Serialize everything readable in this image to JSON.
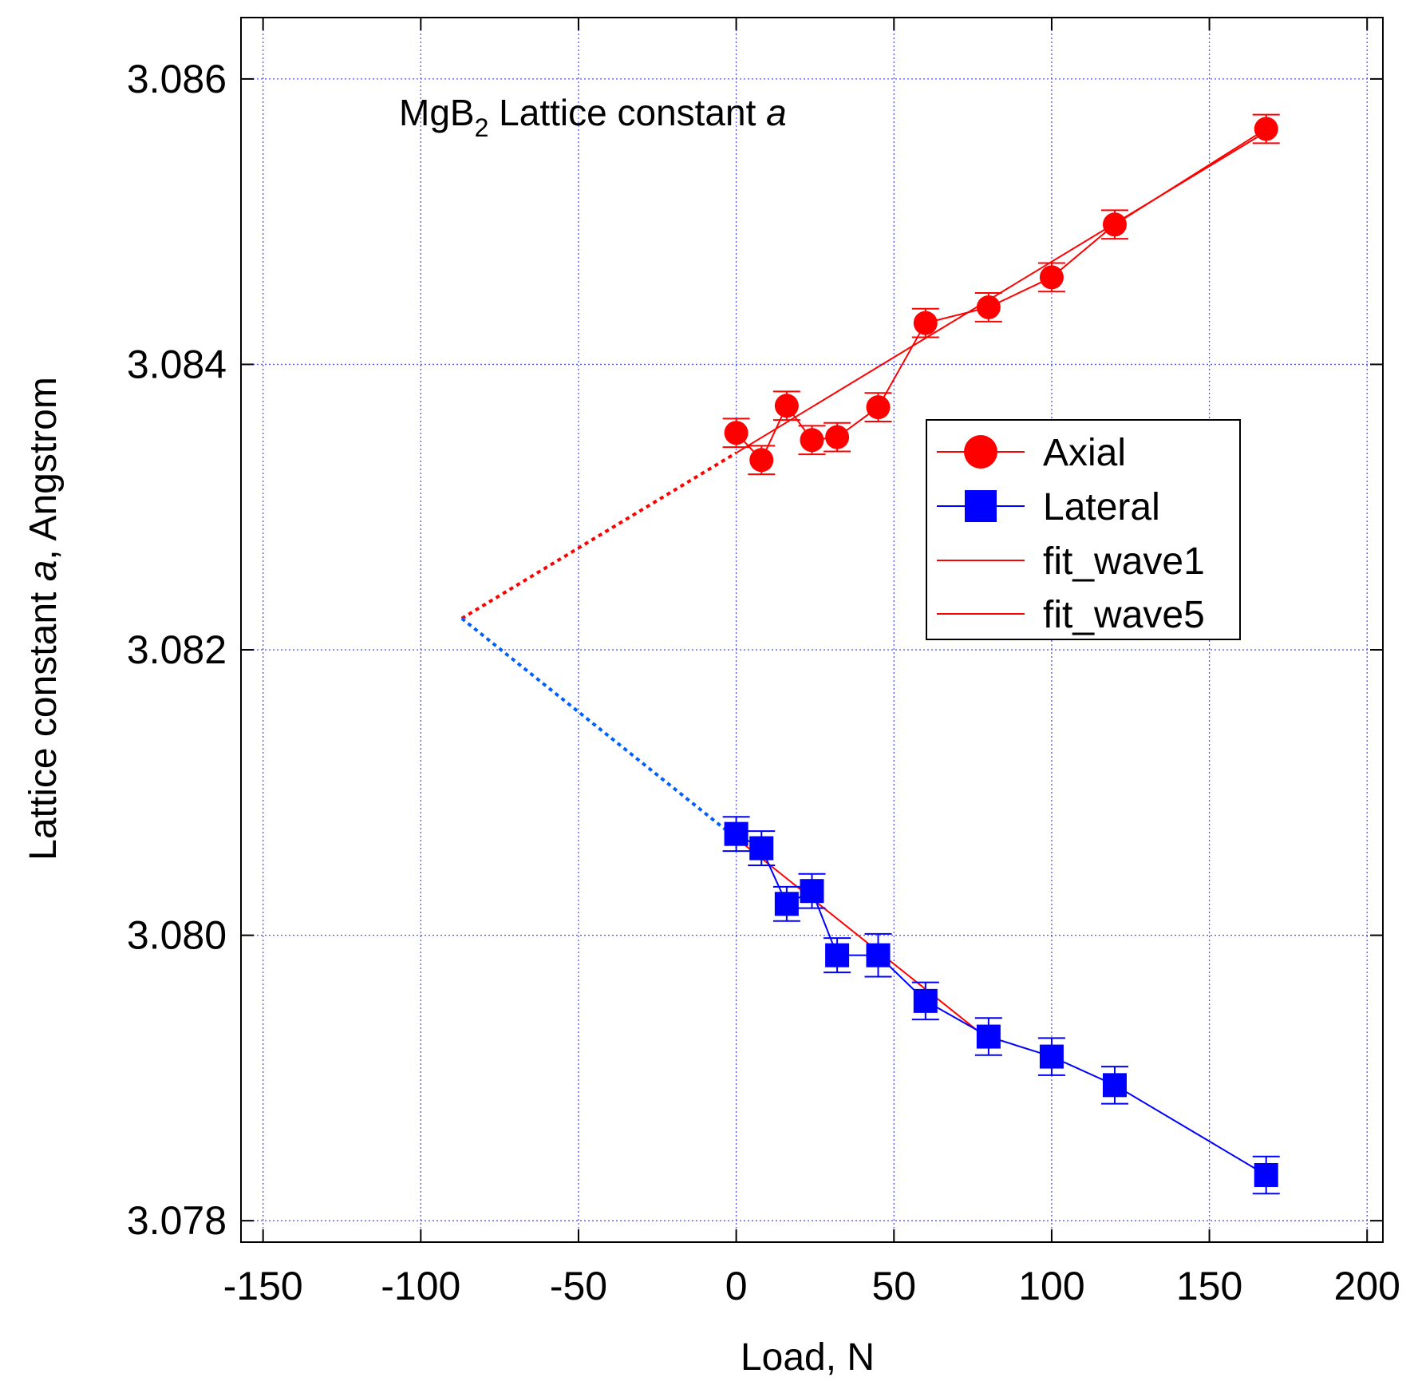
{
  "chart_data": {
    "type": "scatter",
    "title": {
      "pre": "MgB",
      "sub": "2",
      "mid": " Lattice constant ",
      "italic": "a"
    },
    "xlabel": "Load, N",
    "ylabel": {
      "pre": "Lattice constant ",
      "italic": "a",
      "post": ", Angstrom"
    },
    "xlim": [
      -157,
      205
    ],
    "ylim": [
      3.07785,
      3.08643
    ],
    "x_ticks": [
      -150,
      -100,
      -50,
      0,
      50,
      100,
      150,
      200
    ],
    "x_tick_labels": [
      "-150",
      "-100",
      "-50",
      "0",
      "50",
      "100",
      "150",
      "200"
    ],
    "y_ticks": [
      3.078,
      3.08,
      3.082,
      3.084,
      3.086
    ],
    "y_tick_labels": [
      "3.078",
      "3.080",
      "3.082",
      "3.084",
      "3.086"
    ],
    "grid": true,
    "legend_position": "right",
    "series": [
      {
        "name": "Axial",
        "color": "#ff0000",
        "marker": "circle",
        "x": [
          0,
          8,
          16,
          24,
          32,
          45,
          60,
          80,
          100,
          120,
          168
        ],
        "y": [
          3.08352,
          3.08333,
          3.08371,
          3.08347,
          3.08349,
          3.0837,
          3.08429,
          3.0844,
          3.08461,
          3.08498,
          3.08565
        ],
        "err": [
          0.0001,
          0.0001,
          0.0001,
          0.0001,
          0.0001,
          0.0001,
          0.0001,
          0.0001,
          0.0001,
          0.0001,
          0.0001
        ]
      },
      {
        "name": "Lateral",
        "color": "#0000ff",
        "marker": "square",
        "x": [
          0,
          8,
          16,
          24,
          32,
          45,
          60,
          80,
          100,
          120,
          168
        ],
        "y": [
          3.08071,
          3.08061,
          3.08022,
          3.08031,
          3.07986,
          3.07986,
          3.07954,
          3.07929,
          3.07915,
          3.07895,
          3.07832
        ],
        "err": [
          0.00012,
          0.00012,
          0.00012,
          0.00012,
          0.00012,
          0.00015,
          0.00013,
          0.00013,
          0.00013,
          0.00013,
          0.00013
        ]
      },
      {
        "name": "fit_wave1",
        "color": "#ff0000",
        "line": "solid",
        "x": [
          0,
          168
        ],
        "y": [
          3.08338,
          3.08563
        ]
      },
      {
        "name": "fit_wave5",
        "color": "#ff0000",
        "line": "solid",
        "x": [
          0,
          80
        ],
        "y": [
          3.08068,
          3.07927
        ]
      }
    ],
    "extrapolations": [
      {
        "color": "#ff0000",
        "line": "dotted",
        "x": [
          -87,
          0
        ],
        "y": [
          3.08222,
          3.08338
        ]
      },
      {
        "color": "#0060ff",
        "line": "dotted",
        "x": [
          -87,
          0
        ],
        "y": [
          3.08222,
          3.08068
        ]
      }
    ]
  }
}
